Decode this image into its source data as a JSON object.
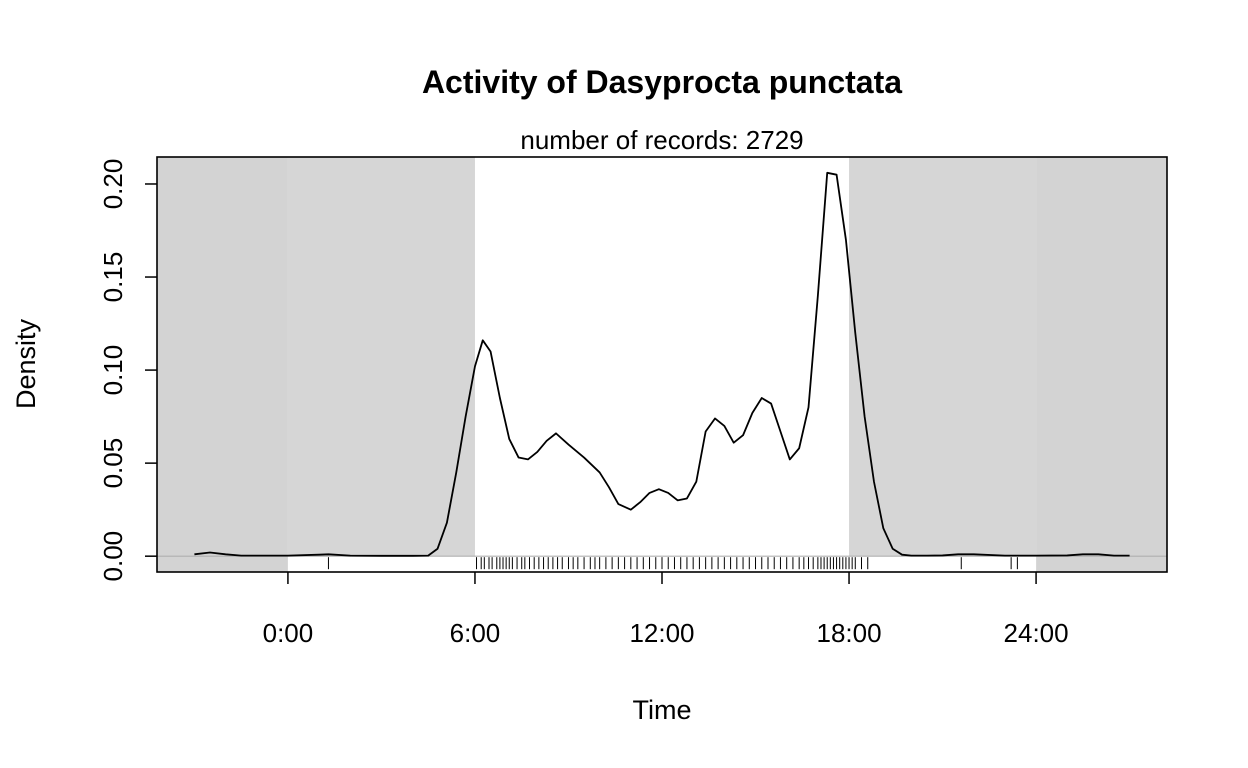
{
  "chart_data": {
    "type": "line",
    "title": "Activity of Dasyprocta punctata",
    "subtitle": "number of records: 2729",
    "xlabel": "Time",
    "ylabel": "Density",
    "xlim": [
      -4.2,
      28.2
    ],
    "ylim": [
      -0.0085,
      0.2145
    ],
    "x_ticks": [
      0,
      6,
      12,
      18,
      24
    ],
    "x_tick_labels": [
      "0:00",
      "6:00",
      "12:00",
      "18:00",
      "24:00"
    ],
    "y_ticks": [
      0,
      0.05,
      0.1,
      0.15,
      0.2
    ],
    "y_tick_labels": [
      "0.00",
      "0.05",
      "0.10",
      "0.15",
      "0.20"
    ],
    "night_shading": [
      {
        "from": -4.2,
        "to": 0,
        "color": "#d3d3d3"
      },
      {
        "from": 0,
        "to": 6,
        "color": "#d6d6d6"
      },
      {
        "from": 18,
        "to": 24,
        "color": "#d6d6d6"
      },
      {
        "from": 24,
        "to": 28.2,
        "color": "#d3d3d3"
      }
    ],
    "series": [
      {
        "x": [
          -3,
          -2.5,
          -2,
          -1.5,
          -1,
          0,
          1,
          1.3,
          2,
          3,
          4,
          4.5,
          4.8,
          5.1,
          5.4,
          5.7,
          6.0,
          6.25,
          6.5,
          6.8,
          7.1,
          7.4,
          7.7,
          8.0,
          8.3,
          8.6,
          9.0,
          9.5,
          10.0,
          10.3,
          10.6,
          11.0,
          11.3,
          11.6,
          11.9,
          12.2,
          12.5,
          12.8,
          13.1,
          13.4,
          13.7,
          14.0,
          14.3,
          14.6,
          14.9,
          15.2,
          15.5,
          15.8,
          16.1,
          16.4,
          16.7,
          17.0,
          17.3,
          17.6,
          17.9,
          18.2,
          18.5,
          18.8,
          19.1,
          19.4,
          19.7,
          20,
          20.5,
          21,
          21.5,
          22,
          23,
          24,
          25,
          25.5,
          26,
          26.5,
          27
        ],
        "y": [
          0.001,
          0.002,
          0.001,
          0.0003,
          0.0003,
          0.0003,
          0.0008,
          0.001,
          0.0003,
          0.0002,
          0.0002,
          0.0003,
          0.004,
          0.018,
          0.045,
          0.075,
          0.102,
          0.116,
          0.11,
          0.085,
          0.063,
          0.053,
          0.052,
          0.056,
          0.062,
          0.066,
          0.06,
          0.053,
          0.045,
          0.037,
          0.028,
          0.025,
          0.029,
          0.034,
          0.036,
          0.034,
          0.03,
          0.031,
          0.04,
          0.067,
          0.074,
          0.07,
          0.061,
          0.065,
          0.077,
          0.085,
          0.082,
          0.067,
          0.052,
          0.058,
          0.08,
          0.14,
          0.206,
          0.205,
          0.17,
          0.12,
          0.075,
          0.04,
          0.015,
          0.004,
          0.0008,
          0.0003,
          0.0003,
          0.0004,
          0.001,
          0.001,
          0.0003,
          0.0003,
          0.0004,
          0.001,
          0.001,
          0.0003,
          0.0003
        ]
      }
    ],
    "records_x": [
      1.3,
      6.05,
      6.2,
      6.3,
      6.45,
      6.55,
      6.7,
      6.8,
      6.9,
      7.0,
      7.1,
      7.2,
      7.35,
      7.5,
      7.6,
      7.75,
      7.9,
      8.05,
      8.2,
      8.35,
      8.5,
      8.65,
      8.8,
      9.0,
      9.15,
      9.3,
      9.5,
      9.7,
      9.85,
      10.0,
      10.2,
      10.4,
      10.6,
      10.8,
      11.0,
      11.2,
      11.4,
      11.6,
      11.8,
      12.0,
      12.2,
      12.4,
      12.6,
      12.8,
      13.0,
      13.2,
      13.4,
      13.6,
      13.8,
      14.0,
      14.2,
      14.4,
      14.6,
      14.8,
      15.0,
      15.2,
      15.4,
      15.6,
      15.8,
      16.0,
      16.2,
      16.4,
      16.55,
      16.7,
      16.85,
      17.0,
      17.1,
      17.2,
      17.3,
      17.4,
      17.5,
      17.6,
      17.7,
      17.8,
      17.9,
      18.0,
      18.1,
      18.2,
      18.4,
      18.6,
      21.6,
      23.2,
      23.4
    ]
  }
}
